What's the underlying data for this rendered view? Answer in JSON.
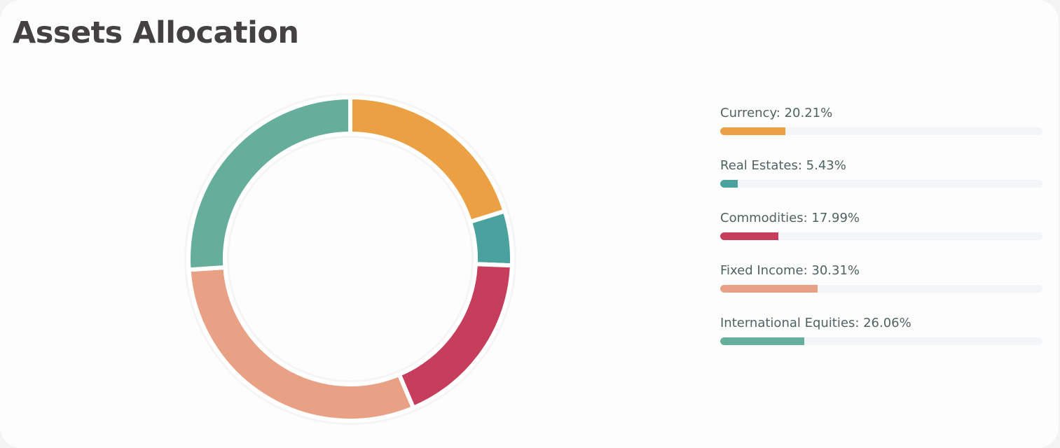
{
  "header": {
    "title": "Assets Allocation"
  },
  "legend": [
    {
      "label": "Currency: 20.21%",
      "name": "Currency",
      "value": 20.21,
      "color": "#eba143"
    },
    {
      "label": "Real Estates: 5.43%",
      "name": "Real Estates",
      "value": 5.43,
      "color": "#4aa29f"
    },
    {
      "label": "Commodities: 17.99%",
      "name": "Commodities",
      "value": 17.99,
      "color": "#c63e5c"
    },
    {
      "label": "Fixed Income: 30.31%",
      "name": "Fixed Income",
      "value": 30.31,
      "color": "#e9a186"
    },
    {
      "label": "International Equities: 26.06%",
      "name": "International Equities",
      "value": 26.06,
      "color": "#66ae9c"
    }
  ],
  "chart_data": {
    "type": "pie",
    "variant": "donut",
    "title": "Assets Allocation",
    "categories": [
      "Currency",
      "Real Estates",
      "Commodities",
      "Fixed Income",
      "International Equities"
    ],
    "values": [
      20.21,
      5.43,
      17.99,
      30.31,
      26.06
    ],
    "colors": [
      "#eba143",
      "#4aa29f",
      "#c63e5c",
      "#e9a186",
      "#66ae9c"
    ],
    "unit": "%",
    "legend_position": "right",
    "start_angle": "top, clockwise"
  }
}
